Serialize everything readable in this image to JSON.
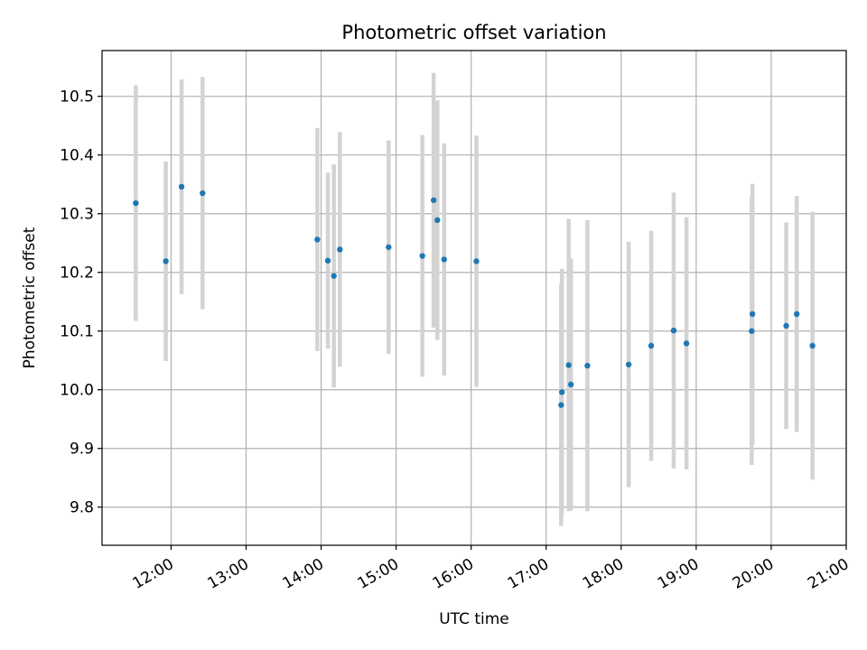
{
  "chart_data": {
    "type": "scatter",
    "title": "Photometric offset variation",
    "xlabel": "UTC time",
    "ylabel": "Photometric offset",
    "grid": true,
    "xlim_hours": [
      11.08,
      21.0
    ],
    "ylim": [
      9.735,
      10.578
    ],
    "x_ticks": [
      {
        "value": 12,
        "label": "12:00"
      },
      {
        "value": 13,
        "label": "13:00"
      },
      {
        "value": 14,
        "label": "14:00"
      },
      {
        "value": 15,
        "label": "15:00"
      },
      {
        "value": 16,
        "label": "16:00"
      },
      {
        "value": 17,
        "label": "17:00"
      },
      {
        "value": 18,
        "label": "18:00"
      },
      {
        "value": 19,
        "label": "19:00"
      },
      {
        "value": 20,
        "label": "20:00"
      },
      {
        "value": 21,
        "label": "21:00"
      }
    ],
    "y_ticks": [
      {
        "value": 9.8,
        "label": "9.8"
      },
      {
        "value": 9.9,
        "label": "9.9"
      },
      {
        "value": 10.0,
        "label": "10.0"
      },
      {
        "value": 10.1,
        "label": "10.1"
      },
      {
        "value": 10.2,
        "label": "10.2"
      },
      {
        "value": 10.3,
        "label": "10.3"
      },
      {
        "value": 10.4,
        "label": "10.4"
      },
      {
        "value": 10.5,
        "label": "10.5"
      }
    ],
    "marker_color": "#1f77b4",
    "errorbar_color": "#d3d3d3",
    "points": [
      {
        "x": 11.53,
        "y": 10.318,
        "err": 0.201
      },
      {
        "x": 11.93,
        "y": 10.219,
        "err": 0.17
      },
      {
        "x": 12.14,
        "y": 10.346,
        "err": 0.183
      },
      {
        "x": 12.42,
        "y": 10.335,
        "err": 0.198
      },
      {
        "x": 13.95,
        "y": 10.256,
        "err": 0.19
      },
      {
        "x": 14.09,
        "y": 10.22,
        "err": 0.15
      },
      {
        "x": 14.17,
        "y": 10.194,
        "err": 0.19
      },
      {
        "x": 14.25,
        "y": 10.239,
        "err": 0.2
      },
      {
        "x": 14.9,
        "y": 10.243,
        "err": 0.182
      },
      {
        "x": 15.35,
        "y": 10.228,
        "err": 0.206
      },
      {
        "x": 15.5,
        "y": 10.323,
        "err": 0.217
      },
      {
        "x": 15.55,
        "y": 10.289,
        "err": 0.204
      },
      {
        "x": 15.64,
        "y": 10.222,
        "err": 0.198
      },
      {
        "x": 16.07,
        "y": 10.219,
        "err": 0.214
      },
      {
        "x": 17.2,
        "y": 9.974,
        "err": 0.206
      },
      {
        "x": 17.21,
        "y": 9.996,
        "err": 0.21
      },
      {
        "x": 17.3,
        "y": 10.042,
        "err": 0.249
      },
      {
        "x": 17.33,
        "y": 10.009,
        "err": 0.215
      },
      {
        "x": 17.55,
        "y": 10.041,
        "err": 0.248
      },
      {
        "x": 18.1,
        "y": 10.043,
        "err": 0.209
      },
      {
        "x": 18.4,
        "y": 10.075,
        "err": 0.196
      },
      {
        "x": 18.7,
        "y": 10.101,
        "err": 0.235
      },
      {
        "x": 18.87,
        "y": 10.079,
        "err": 0.215
      },
      {
        "x": 19.74,
        "y": 10.1,
        "err": 0.228
      },
      {
        "x": 19.75,
        "y": 10.129,
        "err": 0.222
      },
      {
        "x": 20.2,
        "y": 10.109,
        "err": 0.176
      },
      {
        "x": 20.34,
        "y": 10.129,
        "err": 0.201
      },
      {
        "x": 20.55,
        "y": 10.075,
        "err": 0.228
      }
    ]
  }
}
